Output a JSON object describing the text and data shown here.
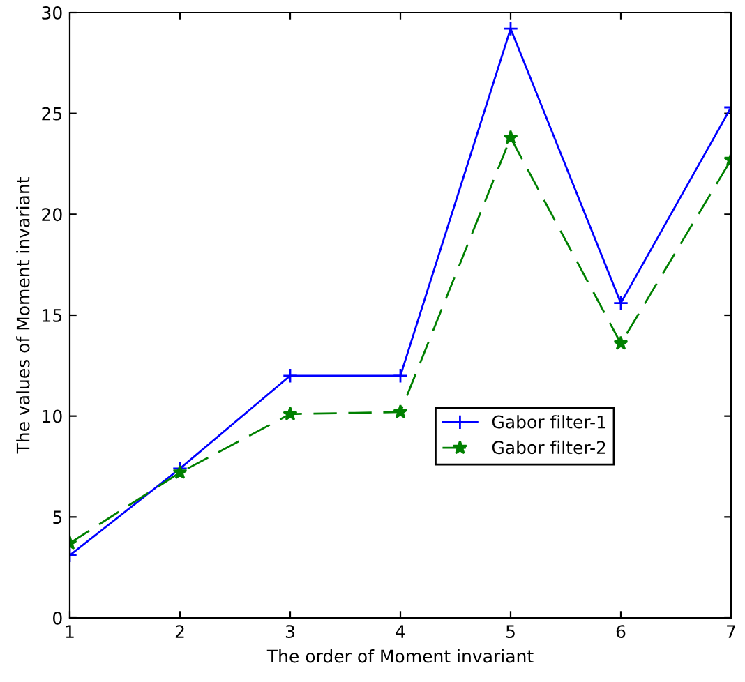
{
  "chart_data": {
    "type": "line",
    "xlabel": "The order of Moment invariant",
    "ylabel": "The values of Moment invariant",
    "x": [
      1,
      2,
      3,
      4,
      5,
      6,
      7
    ],
    "series": [
      {
        "name": "Gabor filter-1",
        "color": "#0000ff",
        "marker": "cross",
        "line_style": "solid",
        "values": [
          3.1,
          7.4,
          12.0,
          12.0,
          29.2,
          15.6,
          25.3
        ]
      },
      {
        "name": "Gabor filter-2",
        "color": "#008000",
        "marker": "star",
        "line_style": "dashed",
        "values": [
          3.7,
          7.2,
          10.1,
          10.2,
          23.8,
          13.6,
          22.7
        ]
      }
    ],
    "xlim": [
      1,
      7
    ],
    "xticks": [
      1,
      2,
      3,
      4,
      5,
      6,
      7
    ],
    "ylim": [
      0,
      30
    ],
    "yticks": [
      0,
      5,
      10,
      15,
      20,
      25,
      30
    ],
    "grid": false,
    "legend": "right"
  }
}
